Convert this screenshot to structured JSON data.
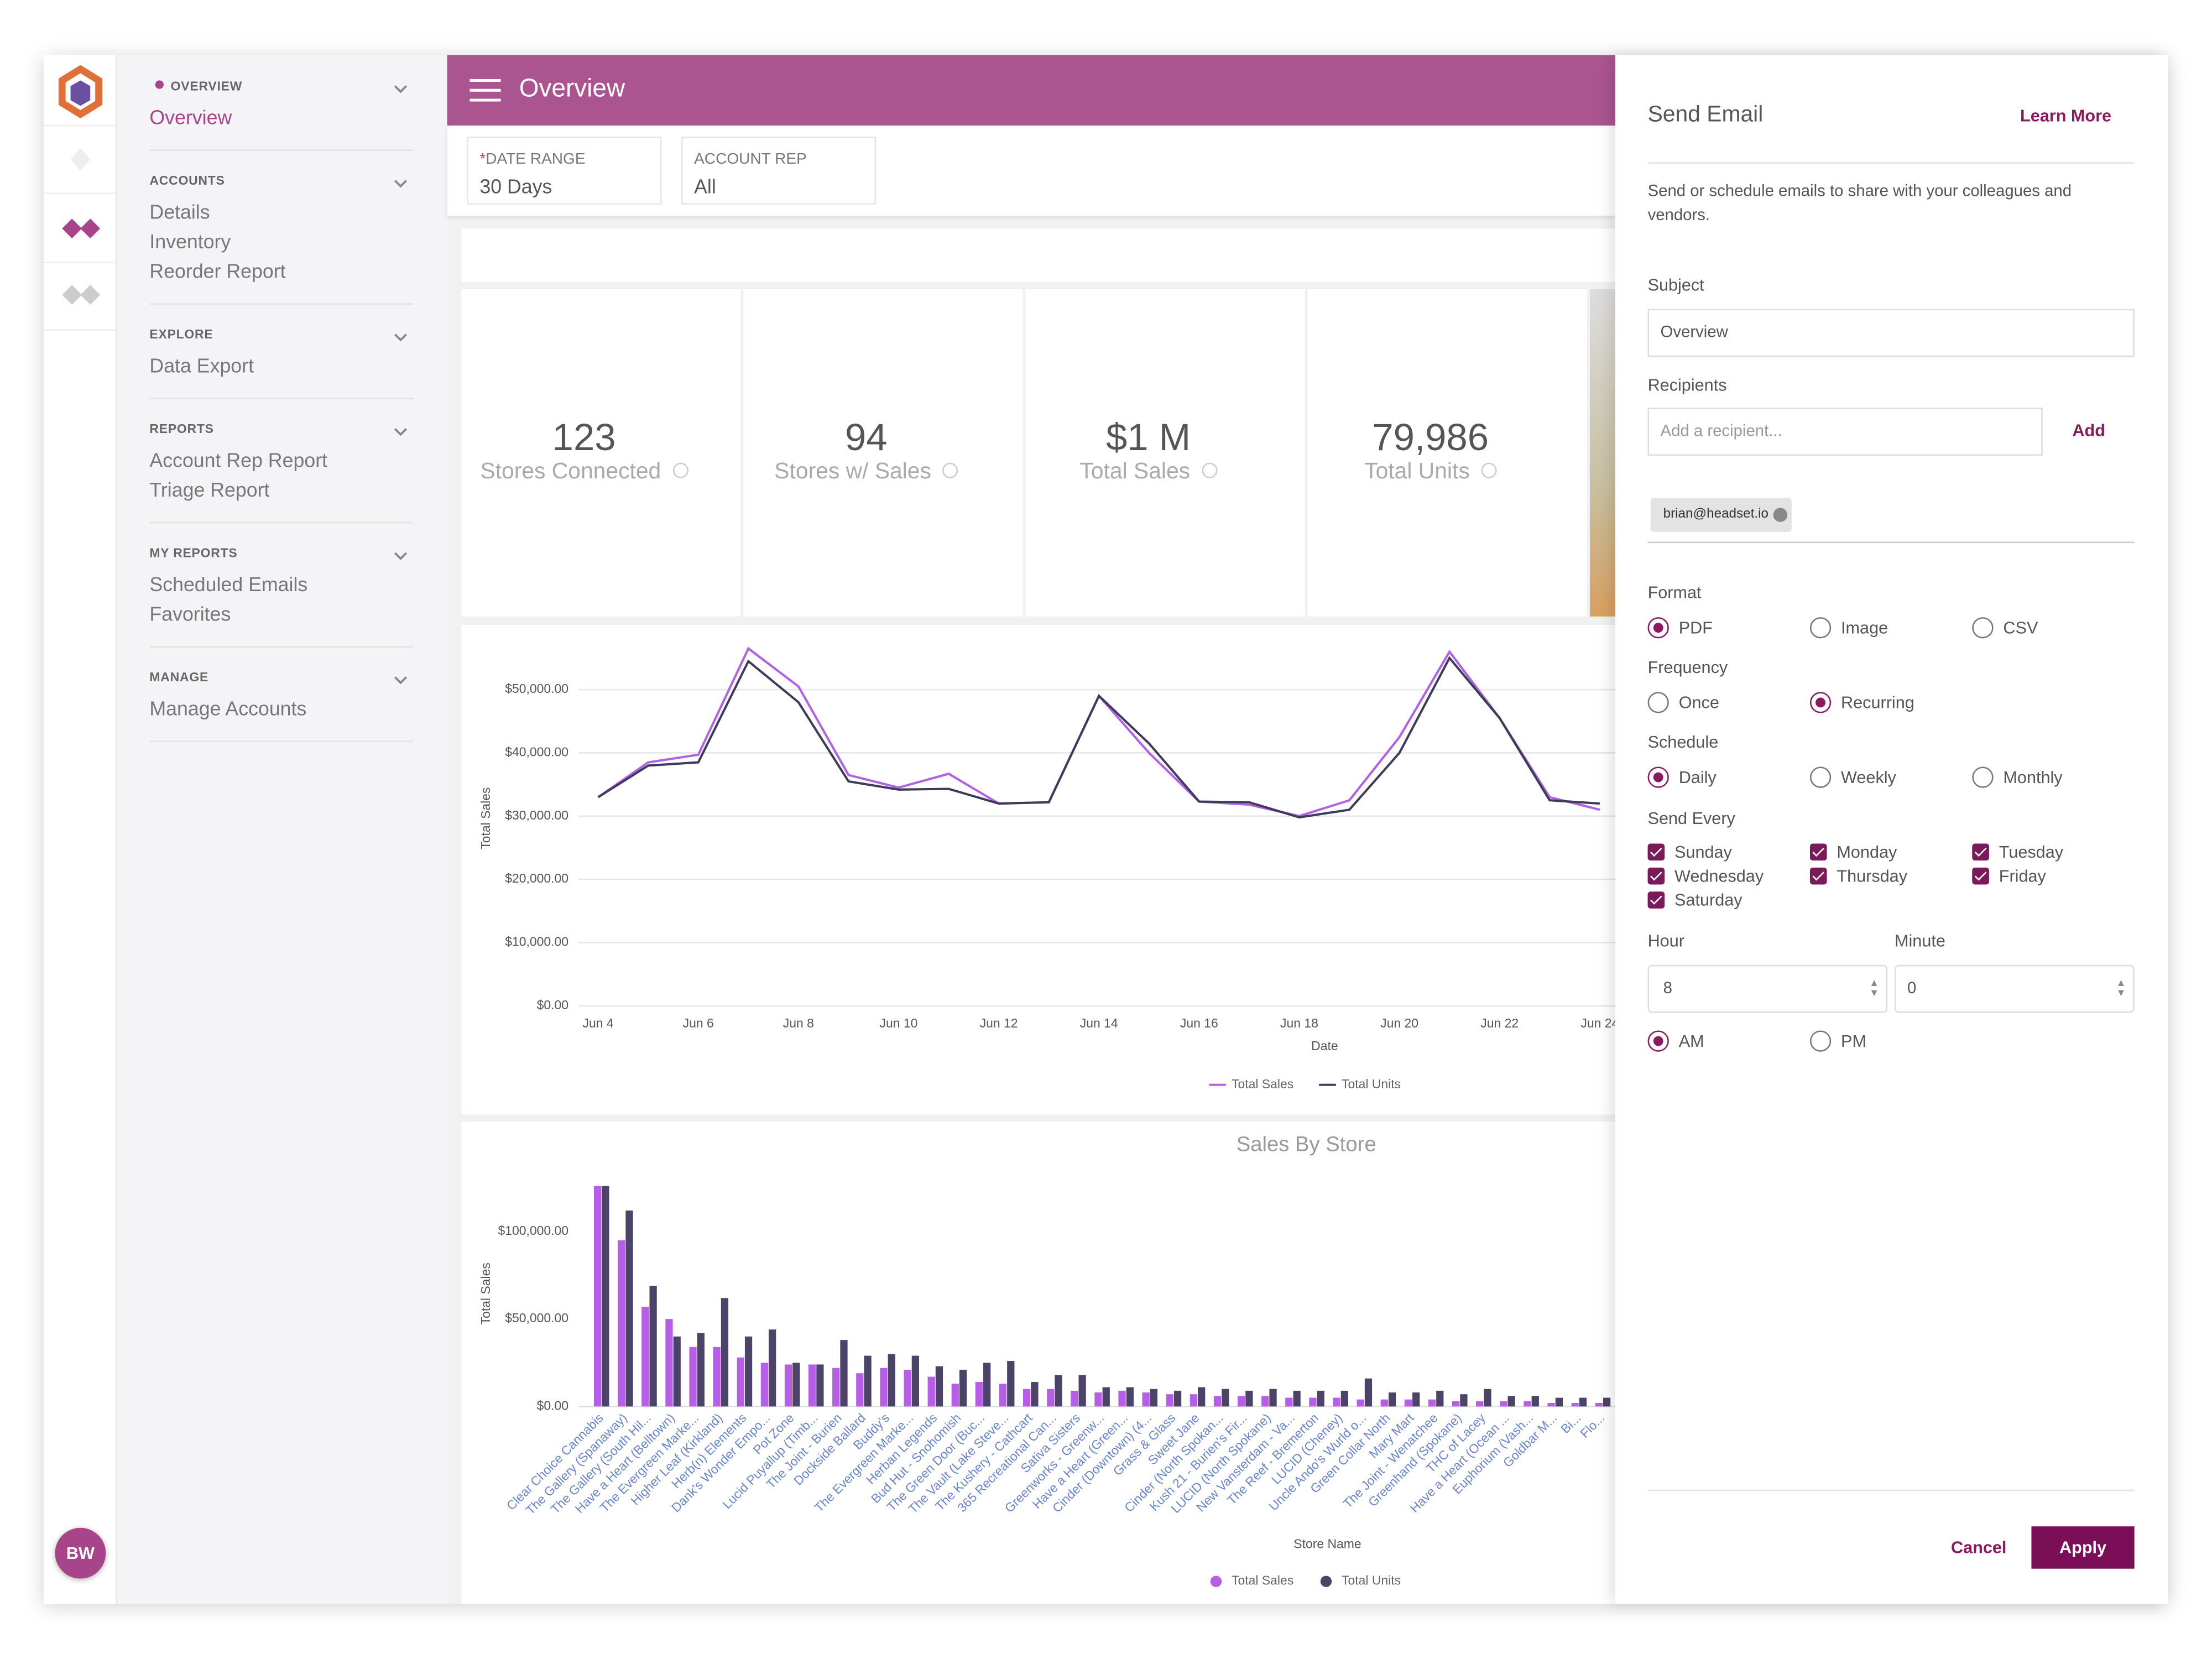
{
  "user_initials": "BW",
  "sidebar": {
    "sections": [
      {
        "title": "OVERVIEW",
        "current": true,
        "items": [
          "Overview"
        ]
      },
      {
        "title": "ACCOUNTS",
        "items": [
          "Details",
          "Inventory",
          "Reorder Report"
        ]
      },
      {
        "title": "EXPLORE",
        "items": [
          "Data Export"
        ]
      },
      {
        "title": "REPORTS",
        "items": [
          "Account Rep Report",
          "Triage Report"
        ]
      },
      {
        "title": "MY REPORTS",
        "items": [
          "Scheduled Emails",
          "Favorites"
        ]
      },
      {
        "title": "MANAGE",
        "items": [
          "Manage Accounts"
        ]
      }
    ]
  },
  "header": {
    "title": "Overview"
  },
  "filters": [
    {
      "required_mark": "*",
      "label": "DATE RANGE",
      "value": "30 Days"
    },
    {
      "label": "ACCOUNT REP",
      "value": "All"
    }
  ],
  "kpis": [
    {
      "value": "123",
      "label": "Stores Connected"
    },
    {
      "value": "94",
      "label": "Stores w/ Sales"
    },
    {
      "value": "$1 M",
      "label": "Total Sales"
    },
    {
      "value": "79,986",
      "label": "Total Units"
    }
  ],
  "chart_data": [
    {
      "type": "line",
      "xlabel": "Date",
      "ylabel": "Total Sales",
      "categories": [
        "Jun 4",
        null,
        "Jun 6",
        null,
        "Jun 8",
        null,
        "Jun 10",
        null,
        "Jun 12",
        null,
        "Jun 14",
        null,
        "Jun 16",
        null,
        "Jun 18",
        null,
        "Jun 20",
        null,
        "Jun 22",
        null,
        "Jun 24"
      ],
      "series": [
        {
          "name": "Total Sales",
          "color": "#b260e6",
          "values": [
            33000,
            38500,
            39700,
            56500,
            50500,
            36500,
            34500,
            36700,
            32000,
            32200,
            49000,
            40000,
            32300,
            31800,
            30000,
            32500,
            42500,
            56000,
            45500,
            33000,
            31000
          ]
        },
        {
          "name": "Total Units",
          "color": "#3d3a5c",
          "values": [
            33000,
            38000,
            38500,
            54500,
            48000,
            35500,
            34200,
            34300,
            32000,
            32200,
            49000,
            41500,
            32300,
            32200,
            29800,
            31000,
            40000,
            55000,
            45500,
            32500,
            32000
          ]
        }
      ],
      "ylim": [
        0,
        58000
      ],
      "yticks": [
        {
          "value": 0,
          "label": "$0.00"
        },
        {
          "value": 10000,
          "label": "$10,000.00"
        },
        {
          "value": 20000,
          "label": "$20,000.00"
        },
        {
          "value": 30000,
          "label": "$30,000.00"
        },
        {
          "value": 40000,
          "label": "$40,000.00"
        },
        {
          "value": 50000,
          "label": "$50,000.00"
        }
      ],
      "grid": true,
      "legend": "bottom"
    },
    {
      "type": "bar",
      "title": "Sales By Store",
      "xlabel": "Store Name",
      "ylabel": "Total Sales",
      "categories": [
        "Clear Choice Cannabis",
        "The Gallery (Spanaway)",
        "The Gallery (South Hil...",
        "Have a Heart (Belltown)",
        "The Evergreen Marke...",
        "Higher Leaf (Kirkland)",
        "Herb(n) Elements",
        "Dank's Wonder Empo...",
        "Pot Zone",
        "Lucid Puyallup (Timb...",
        "The Joint - Burien",
        "Dockside Ballard",
        "Buddy's",
        "The Evergreen Marke...",
        "Herban Legends",
        "Bud Hut - Snohomish",
        "The Green Door (Buc...",
        "The Vault (Lake Steve...",
        "The Kushery - Cathcart",
        "365 Recreational Can...",
        "Sativa Sisters",
        "Greenworks - Greenw...",
        "Have a Heart (Green...",
        "Cinder (Downtown) (4...",
        "Grass & Glass",
        "Sweet Jane",
        "Cinder (North Spokan...",
        "Kush 21 - Burien's Fir...",
        "LUCID (North Spokane)",
        "New Vansterdam - Va...",
        "The Reef - Bremerton",
        "LUCID (Cheney)",
        "Uncle Ando's Wurld o...",
        "Green Collar North",
        "Mary Mart",
        "The Joint - Wenatchee",
        "Greenhand (Spokane)",
        "THC of Lacey",
        "Have a Heart (Ocean ...",
        "Euphorium (Vash...",
        "Goldbar M...",
        "Bi...",
        "Flo..."
      ],
      "series": [
        {
          "name": "Total Sales",
          "color": "#b75ee8",
          "values": [
            126000,
            95000,
            57000,
            50000,
            34000,
            34000,
            28000,
            25000,
            24000,
            24000,
            22000,
            19000,
            22000,
            21000,
            17000,
            13000,
            14000,
            13000,
            10000,
            10000,
            9000,
            8000,
            9000,
            8000,
            7000,
            7000,
            6000,
            6000,
            6000,
            5000,
            5000,
            5000,
            4000,
            4000,
            4000,
            4000,
            3000,
            3000,
            3000,
            3000,
            2000,
            2000,
            2000
          ]
        },
        {
          "name": "Total Units",
          "color": "#4b4468",
          "values": [
            126000,
            112000,
            69000,
            40000,
            42000,
            62000,
            40000,
            44000,
            25000,
            24000,
            38000,
            29000,
            30000,
            29000,
            23000,
            21000,
            25000,
            26000,
            14000,
            18000,
            18000,
            11000,
            11000,
            10000,
            9000,
            11000,
            10000,
            9000,
            10000,
            9000,
            9000,
            9000,
            16000,
            8000,
            8000,
            9000,
            7000,
            10000,
            6000,
            6000,
            5000,
            5000,
            5000
          ]
        }
      ],
      "ylim": [
        0,
        127000
      ],
      "yticks": [
        {
          "value": 0,
          "label": "$0.00"
        },
        {
          "value": 50000,
          "label": "$50,000.00"
        },
        {
          "value": 100000,
          "label": "$100,000.00"
        }
      ],
      "grid": false,
      "legend": "bottom"
    }
  ],
  "email_panel": {
    "title": "Send Email",
    "learn_more": "Learn More",
    "description": "Send or schedule emails to share with your colleagues and vendors.",
    "subject_label": "Subject",
    "subject": "Overview",
    "recipients_label": "Recipients",
    "recipient_placeholder": "Add a recipient...",
    "add": "Add",
    "recipients": [
      "brian@headset.io"
    ],
    "groups": [
      {
        "label": "Format",
        "options": [
          {
            "label": "PDF",
            "selected": true
          },
          {
            "label": "Image",
            "selected": false
          },
          {
            "label": "CSV",
            "selected": false
          }
        ]
      },
      {
        "label": "Frequency",
        "options": [
          {
            "label": "Once",
            "selected": false
          },
          {
            "label": "Recurring",
            "selected": true
          }
        ]
      },
      {
        "label": "Schedule",
        "options": [
          {
            "label": "Daily",
            "selected": true
          },
          {
            "label": "Weekly",
            "selected": false
          },
          {
            "label": "Monthly",
            "selected": false
          }
        ]
      }
    ],
    "send_every": {
      "label": "Send Every",
      "days": [
        {
          "label": "Sunday",
          "checked": true
        },
        {
          "label": "Monday",
          "checked": true
        },
        {
          "label": "Tuesday",
          "checked": true
        },
        {
          "label": "Wednesday",
          "checked": true
        },
        {
          "label": "Thursday",
          "checked": true
        },
        {
          "label": "Friday",
          "checked": true
        },
        {
          "label": "Saturday",
          "checked": true
        }
      ]
    },
    "hour_label": "Hour",
    "hour": "8",
    "minute_label": "Minute",
    "minute": "0",
    "meridiem": [
      {
        "label": "AM",
        "selected": true
      },
      {
        "label": "PM",
        "selected": false
      }
    ],
    "cancel": "Cancel",
    "apply": "Apply"
  }
}
